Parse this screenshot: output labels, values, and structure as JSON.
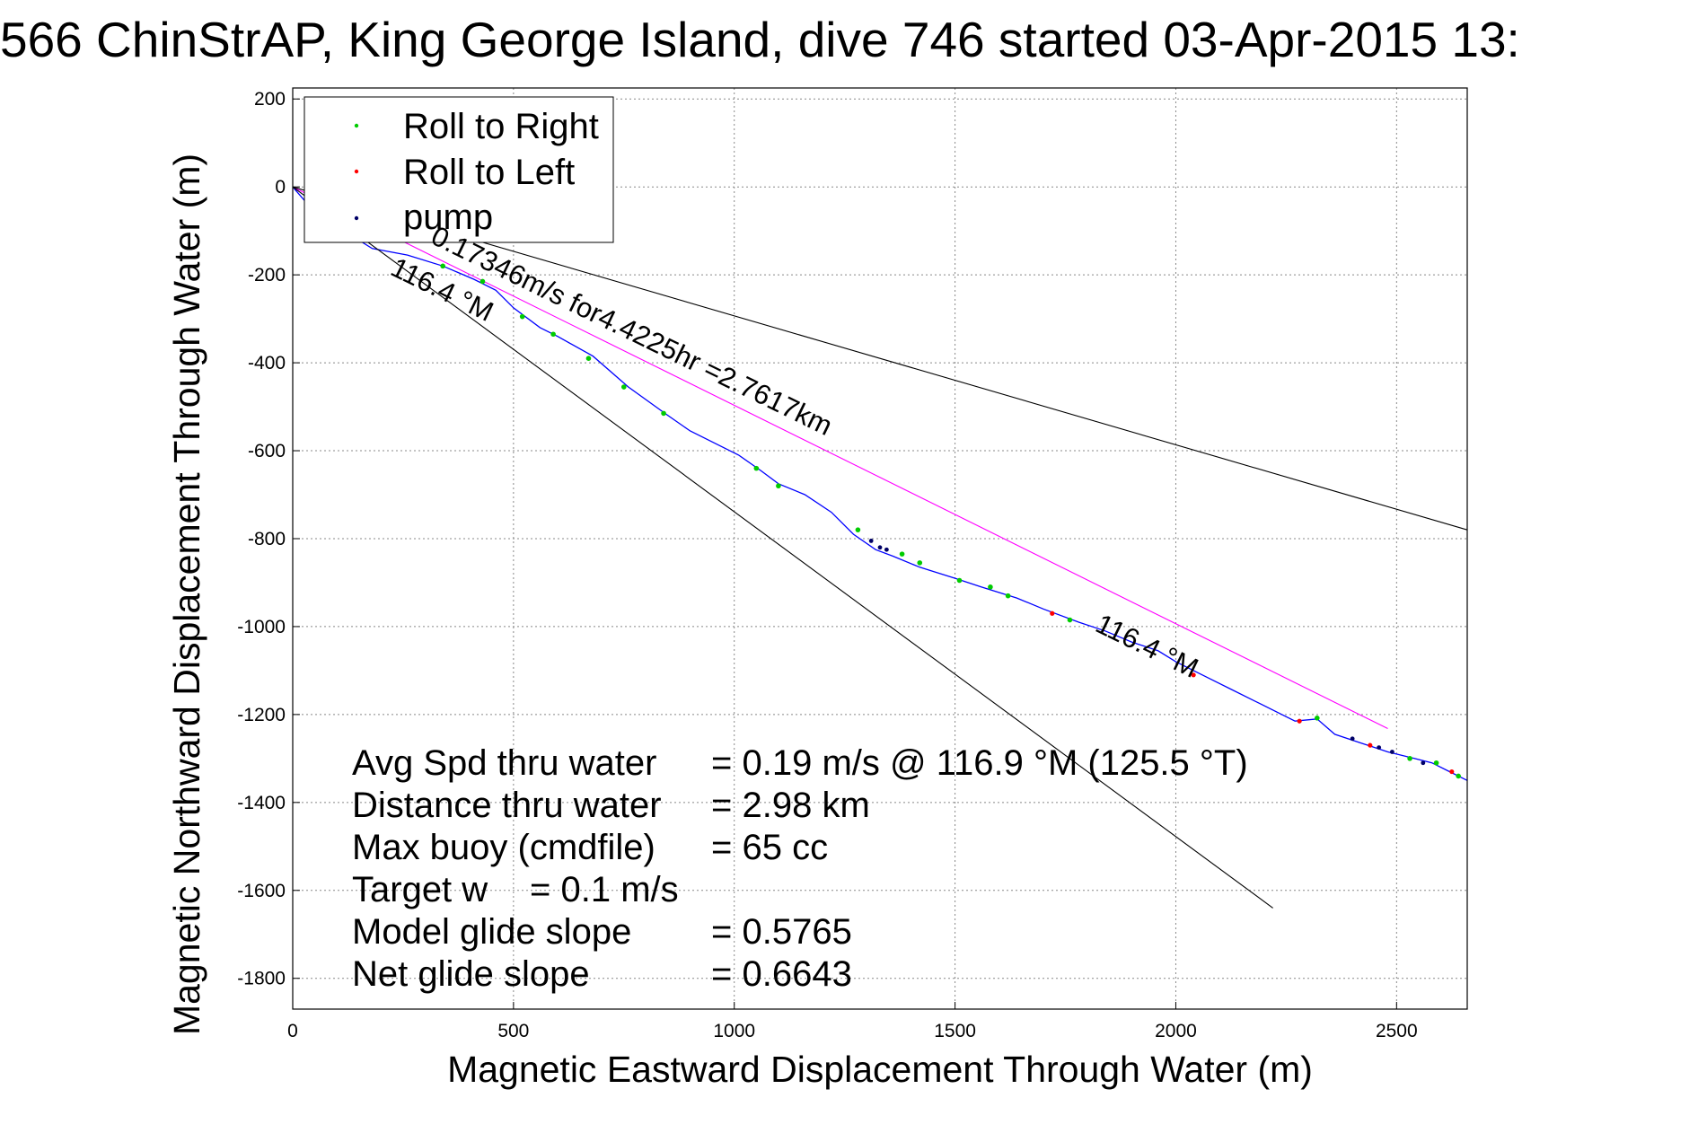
{
  "chart_data": {
    "type": "line",
    "title": "566 ChinStrAP, King George Island, dive 746 started 03-Apr-2015 13:",
    "xlabel": "Magnetic Eastward Displacement Through Water (m)",
    "ylabel": "Magnetic Northward Displacement Through Water (m)",
    "xlim": [
      0,
      2660
    ],
    "ylim": [
      -1870,
      225
    ],
    "xticks": [
      0,
      500,
      1000,
      1500,
      2000,
      2500
    ],
    "yticks": [
      200,
      0,
      -200,
      -400,
      -600,
      -800,
      -1000,
      -1200,
      -1400,
      -1600,
      -1800
    ],
    "grid": true,
    "legend_position": "top-left",
    "legend": [
      {
        "label": "Roll to Right",
        "color": "#00cc00"
      },
      {
        "label": "Roll to Left",
        "color": "#ff0000"
      },
      {
        "label": "pump",
        "color": "#000066"
      }
    ],
    "series": [
      {
        "type": "track",
        "color": "#0000ff",
        "x": [
          0,
          30,
          100,
          180,
          260,
          340,
          410,
          460,
          500,
          560,
          600,
          680,
          760,
          850,
          900,
          960,
          1010,
          1060,
          1100,
          1160,
          1220,
          1270,
          1320,
          1360,
          1420,
          1500,
          1560,
          1640,
          1700,
          1780,
          1840,
          1900,
          1960,
          2000,
          2060,
          2120,
          2190,
          2270,
          2320,
          2360,
          2420,
          2480,
          2540,
          2580,
          2620,
          2660
        ],
        "y": [
          0,
          -35,
          -90,
          -140,
          -155,
          -180,
          -210,
          -235,
          -275,
          -320,
          -340,
          -385,
          -455,
          -520,
          -555,
          -585,
          -610,
          -645,
          -675,
          -700,
          -740,
          -790,
          -825,
          -840,
          -865,
          -890,
          -910,
          -935,
          -960,
          -990,
          -1010,
          -1035,
          -1055,
          -1080,
          -1110,
          -1140,
          -1175,
          -1215,
          -1210,
          -1245,
          -1265,
          -1285,
          -1300,
          -1310,
          -1330,
          -1350
        ]
      },
      {
        "type": "line",
        "color": "#ff00ff",
        "x": [
          0,
          2480
        ],
        "y": [
          0,
          -1232
        ]
      },
      {
        "type": "line",
        "color": "#000000",
        "x": [
          0,
          2660
        ],
        "y": [
          0,
          -780
        ]
      },
      {
        "type": "line",
        "color": "#000000",
        "x": [
          0,
          2220
        ],
        "y": [
          0,
          -1640
        ]
      }
    ],
    "roll_right_points": [
      [
        50,
        -45
      ],
      [
        340,
        -180
      ],
      [
        430,
        -215
      ],
      [
        520,
        -295
      ],
      [
        590,
        -335
      ],
      [
        670,
        -390
      ],
      [
        750,
        -455
      ],
      [
        840,
        -515
      ],
      [
        1050,
        -640
      ],
      [
        1100,
        -680
      ],
      [
        1280,
        -780
      ],
      [
        1380,
        -835
      ],
      [
        1420,
        -855
      ],
      [
        1510,
        -895
      ],
      [
        1580,
        -910
      ],
      [
        1620,
        -930
      ],
      [
        1760,
        -985
      ],
      [
        2320,
        -1208
      ],
      [
        2530,
        -1300
      ],
      [
        2590,
        -1310
      ],
      [
        2640,
        -1340
      ]
    ],
    "roll_left_points": [
      [
        1720,
        -970
      ],
      [
        2040,
        -1110
      ],
      [
        2280,
        -1215
      ],
      [
        2440,
        -1270
      ],
      [
        2625,
        -1330
      ]
    ],
    "pump_points": [
      [
        1310,
        -805
      ],
      [
        1330,
        -820
      ],
      [
        1345,
        -825
      ],
      [
        2400,
        -1255
      ],
      [
        2460,
        -1275
      ],
      [
        2490,
        -1285
      ],
      [
        2560,
        -1310
      ]
    ],
    "annotations": {
      "upper_heading": "116.4 °M",
      "lower_heading": "116.4 °M",
      "speed_line": "0.17346m/s for4.4225hr =2.7617km"
    },
    "stats": [
      {
        "label": "Avg Spd thru water",
        "value": "=  0.19 m/s @ 116.9 °M (125.5 °T)"
      },
      {
        "label": "Distance thru water",
        "value": "=  2.98 km"
      },
      {
        "label": "Max buoy (cmdfile)",
        "value": "= 65 cc"
      },
      {
        "label": "Target w",
        "value": "= 0.1 m/s"
      },
      {
        "label": "Model glide slope",
        "value": "= 0.5765"
      },
      {
        "label": "Net glide slope",
        "value": "= 0.6643"
      }
    ]
  }
}
